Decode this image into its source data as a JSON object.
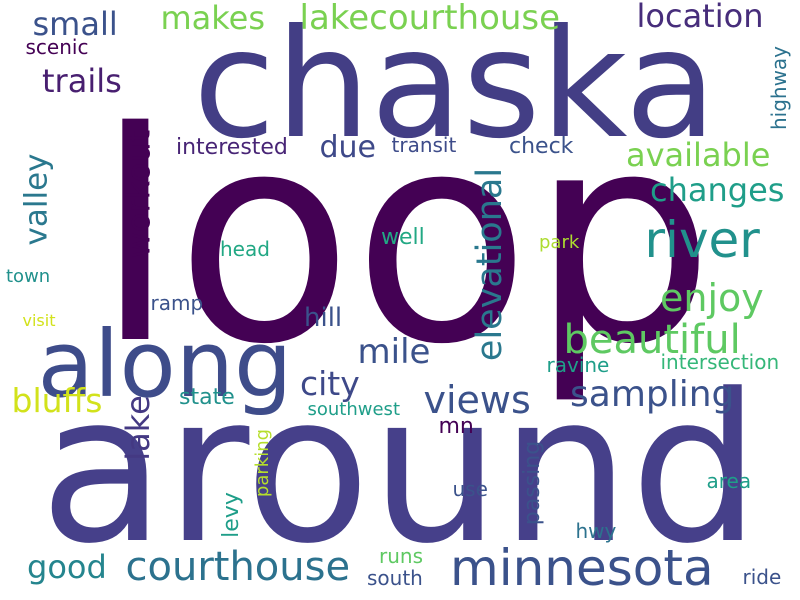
{
  "words": [
    {
      "text": "loop",
      "color": "#440154"
    },
    {
      "text": "around",
      "color": "#46408a"
    },
    {
      "text": "chaska",
      "color": "#433e85"
    },
    {
      "text": "along",
      "color": "#3e4c8a"
    },
    {
      "text": "river",
      "color": "#21918c"
    },
    {
      "text": "minnesota",
      "color": "#3b528b"
    },
    {
      "text": "courthouse",
      "color": "#2c728e"
    },
    {
      "text": "lakecourthouse",
      "color": "#7ad151"
    },
    {
      "text": "beautiful",
      "color": "#5ec962"
    },
    {
      "text": "enjoy",
      "color": "#5ec962"
    },
    {
      "text": "views",
      "color": "#3b528b"
    },
    {
      "text": "sampling",
      "color": "#3b528b"
    },
    {
      "text": "available",
      "color": "#7ad151"
    },
    {
      "text": "changes",
      "color": "#1f9e89"
    },
    {
      "text": "elevational",
      "color": "#2a788e"
    },
    {
      "text": "location",
      "color": "#472d7b"
    },
    {
      "text": "makes",
      "color": "#7ad151"
    },
    {
      "text": "small",
      "color": "#3b528b"
    },
    {
      "text": "trails",
      "color": "#481f70"
    },
    {
      "text": "mile",
      "color": "#3b528b"
    },
    {
      "text": "city",
      "color": "#3e4989"
    },
    {
      "text": "bluffs",
      "color": "#d2e21b"
    },
    {
      "text": "lake",
      "color": "#443983"
    },
    {
      "text": "workout",
      "color": "#440154"
    },
    {
      "text": "valley",
      "color": "#2a788e"
    },
    {
      "text": "due",
      "color": "#3e4989"
    },
    {
      "text": "good",
      "color": "#25858e"
    },
    {
      "text": "hill",
      "color": "#3b528b"
    },
    {
      "text": "check",
      "color": "#3b528b"
    },
    {
      "text": "interested",
      "color": "#482576"
    },
    {
      "text": "transit",
      "color": "#3e4c8a"
    },
    {
      "text": "highway",
      "color": "#2c728e"
    },
    {
      "text": "well",
      "color": "#22a884"
    },
    {
      "text": "head",
      "color": "#22a884"
    },
    {
      "text": "park",
      "color": "#addc30"
    },
    {
      "text": "scenic",
      "color": "#440154"
    },
    {
      "text": "town",
      "color": "#21918c"
    },
    {
      "text": "visit",
      "color": "#d2e21b"
    },
    {
      "text": "ramp",
      "color": "#3b528b"
    },
    {
      "text": "state",
      "color": "#21918c"
    },
    {
      "text": "parking",
      "color": "#b5de2b"
    },
    {
      "text": "southwest",
      "color": "#1f9e89"
    },
    {
      "text": "mn",
      "color": "#440154"
    },
    {
      "text": "ravine",
      "color": "#1f9e89"
    },
    {
      "text": "intersection",
      "color": "#35b779"
    },
    {
      "text": "levy",
      "color": "#1f9e89"
    },
    {
      "text": "use",
      "color": "#3b528b"
    },
    {
      "text": "passing",
      "color": "#3b528b"
    },
    {
      "text": "area",
      "color": "#1f9e89"
    },
    {
      "text": "hwy",
      "color": "#2c728e"
    },
    {
      "text": "runs",
      "color": "#5ec962"
    },
    {
      "text": "south",
      "color": "#3b528b"
    },
    {
      "text": "ride",
      "color": "#3b528b"
    }
  ]
}
